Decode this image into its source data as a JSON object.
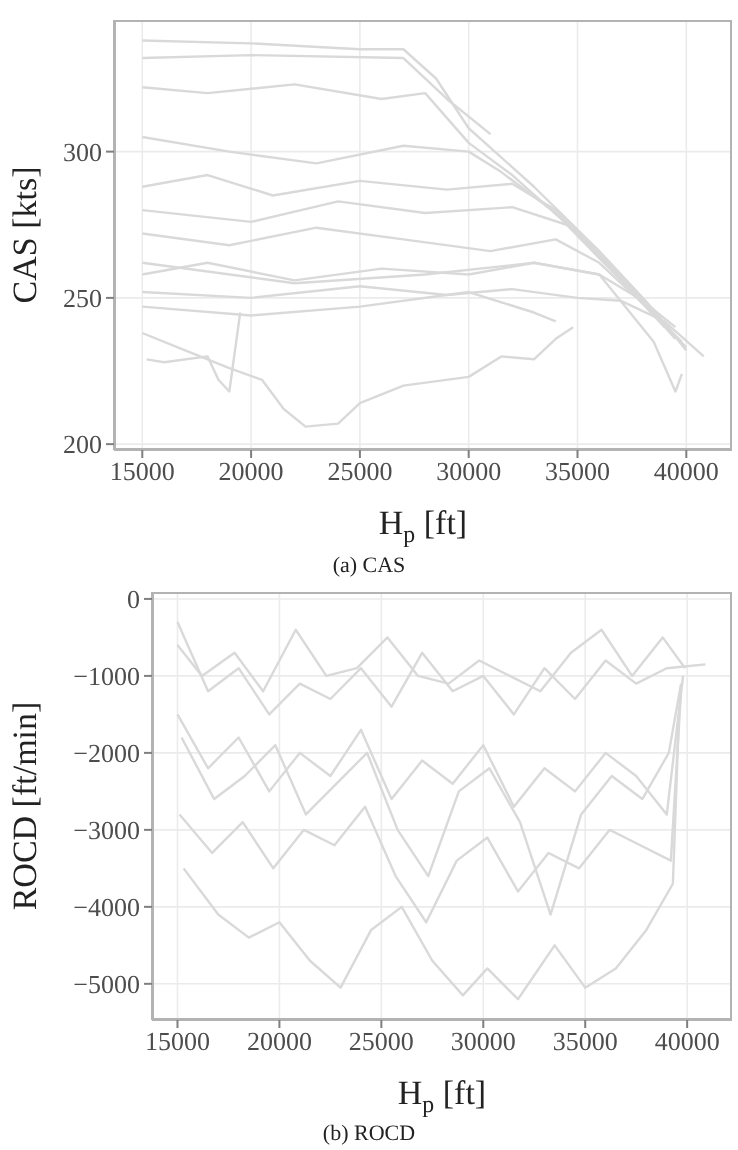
{
  "chart_data": [
    {
      "type": "line",
      "title": "(a) CAS",
      "xlabel": "H$_{p}$ [ft]",
      "ylabel": "CAS [kts]",
      "xlim": [
        13700,
        42100
      ],
      "ylim": [
        198,
        345
      ],
      "xticks": [
        15000,
        20000,
        25000,
        30000,
        35000,
        40000
      ],
      "yticks": [
        200,
        250,
        300
      ],
      "grid": true,
      "series": [
        {
          "color": "#d9d9d9",
          "x": [
            15000,
            20000,
            25000,
            27000,
            28500,
            30000,
            33000,
            36000,
            38000,
            39500
          ],
          "values": [
            338,
            337,
            335,
            335,
            325,
            308,
            288,
            266,
            250,
            237
          ]
        },
        {
          "color": "#d9d9d9",
          "x": [
            15000,
            18000,
            22000,
            26000,
            28000,
            30000,
            32000,
            35000,
            38000,
            40000
          ],
          "values": [
            322,
            320,
            323,
            318,
            320,
            303,
            292,
            272,
            249,
            233
          ]
        },
        {
          "color": "#d9d9d9",
          "x": [
            15000,
            19000,
            23000,
            27000,
            30000,
            31500,
            34000,
            37000,
            39500
          ],
          "values": [
            305,
            300,
            296,
            302,
            300,
            293,
            279,
            257,
            236
          ]
        },
        {
          "color": "#d9d9d9",
          "x": [
            15000,
            18000,
            21000,
            25000,
            29000,
            32000,
            34000,
            36000,
            38500,
            40000
          ],
          "values": [
            288,
            292,
            285,
            290,
            287,
            289,
            280,
            265,
            246,
            232
          ]
        },
        {
          "color": "#d9d9d9",
          "x": [
            15000,
            20000,
            24000,
            28000,
            32000,
            34500,
            37000,
            39000
          ],
          "values": [
            280,
            276,
            283,
            279,
            281,
            275,
            256,
            240
          ]
        },
        {
          "color": "#d9d9d9",
          "x": [
            15000,
            19000,
            23000,
            27000,
            31000,
            34000,
            36000,
            38000,
            39800
          ],
          "values": [
            272,
            268,
            274,
            270,
            266,
            270,
            262,
            248,
            235
          ]
        },
        {
          "color": "#d9d9d9",
          "x": [
            15000,
            18000,
            22000,
            26000,
            30000,
            33000,
            36000,
            38000,
            39500
          ],
          "values": [
            258,
            262,
            256,
            260,
            258,
            262,
            258,
            249,
            240
          ]
        },
        {
          "color": "#d9d9d9",
          "x": [
            15000,
            20000,
            25000,
            29000,
            32000,
            35000,
            37000,
            39000,
            40800
          ],
          "values": [
            252,
            250,
            254,
            251,
            253,
            250,
            249,
            242,
            230
          ]
        },
        {
          "color": "#d9d9d9",
          "x": [
            15000,
            20000,
            25000,
            30000,
            33000,
            34000
          ],
          "values": [
            247,
            244,
            247,
            252,
            245,
            242
          ]
        },
        {
          "color": "#d9d9d9",
          "x": [
            15000,
            17000,
            19000,
            20500,
            21500,
            22500,
            24000,
            25000,
            27000,
            30000,
            31500,
            33000,
            34000,
            34800
          ],
          "values": [
            238,
            232,
            226,
            222,
            212,
            206,
            207,
            214,
            220,
            223,
            230,
            229,
            236,
            240
          ]
        },
        {
          "color": "#d9d9d9",
          "x": [
            15200,
            16000,
            18000,
            18500,
            19000,
            19500
          ],
          "values": [
            229,
            228,
            230,
            222,
            218,
            245
          ]
        },
        {
          "color": "#d9d9d9",
          "x": [
            15000,
            20000,
            27000,
            29000,
            31000
          ],
          "values": [
            332,
            333,
            332,
            318,
            306
          ]
        },
        {
          "color": "#d9d9d9",
          "x": [
            15000,
            22000,
            28000,
            33000,
            36000,
            38500,
            39500,
            39800
          ],
          "values": [
            262,
            255,
            258,
            262,
            258,
            235,
            218,
            224
          ]
        }
      ]
    },
    {
      "type": "line",
      "title": "(b) ROCD",
      "xlabel": "H$_{p}$ [ft]",
      "ylabel": "ROCD [ft/min]",
      "xlim": [
        13750,
        42200
      ],
      "ylim": [
        -5470,
        90
      ],
      "xticks": [
        15000,
        20000,
        25000,
        30000,
        35000,
        40000
      ],
      "yticks": [
        0,
        -1000,
        -2000,
        -3000,
        -4000,
        -5000
      ],
      "grid": true,
      "series": [
        {
          "color": "#d9d9d9",
          "x": [
            15000,
            16500,
            18000,
            19500,
            21000,
            22500,
            24000,
            25500,
            27000,
            28500,
            30000,
            31500,
            33000,
            34500,
            36000,
            37500,
            39000,
            40900
          ],
          "values": [
            -300,
            -1200,
            -900,
            -1500,
            -1100,
            -1300,
            -900,
            -1400,
            -700,
            -1200,
            -1000,
            -1500,
            -900,
            -1300,
            -800,
            -1100,
            -900,
            -850
          ]
        },
        {
          "color": "#d9d9d9",
          "x": [
            15000,
            16500,
            18000,
            19500,
            21000,
            22500,
            24000,
            25500,
            27000,
            28500,
            30000,
            31500,
            33000,
            34500,
            36000,
            37500,
            39000,
            39800
          ],
          "values": [
            -1500,
            -2200,
            -1800,
            -2500,
            -2000,
            -2300,
            -1700,
            -2600,
            -2100,
            -2400,
            -1900,
            -2700,
            -2200,
            -2500,
            -2000,
            -2300,
            -2800,
            -1000
          ]
        },
        {
          "color": "#d9d9d9",
          "x": [
            15100,
            16700,
            18200,
            19700,
            21200,
            22700,
            24200,
            25700,
            27200,
            28700,
            30200,
            31700,
            33200,
            34700,
            36200,
            37700,
            39200,
            39700
          ],
          "values": [
            -2800,
            -3300,
            -2900,
            -3500,
            -3000,
            -3200,
            -2700,
            -3600,
            -4200,
            -3400,
            -3100,
            -3800,
            -3300,
            -3500,
            -3000,
            -3200,
            -3400,
            -1200
          ]
        },
        {
          "color": "#d9d9d9",
          "x": [
            15300,
            17000,
            18500,
            20000,
            21500,
            23000,
            24500,
            26000,
            27500,
            29000,
            30200,
            31700,
            33500,
            35000,
            36500,
            38000,
            39300,
            39600
          ],
          "values": [
            -3500,
            -4100,
            -4400,
            -4200,
            -4700,
            -5050,
            -4300,
            -4000,
            -4700,
            -5150,
            -4800,
            -5200,
            -4500,
            -5050,
            -4800,
            -4300,
            -3700,
            -1500
          ]
        },
        {
          "color": "#d9d9d9",
          "x": [
            15000,
            16200,
            17800,
            19200,
            20800,
            22300,
            23800,
            25300,
            26800,
            28300,
            29800,
            31300,
            32800,
            34300,
            35800,
            37300,
            38800,
            39900
          ],
          "values": [
            -600,
            -1000,
            -700,
            -1200,
            -400,
            -1000,
            -900,
            -500,
            -1000,
            -1100,
            -800,
            -1000,
            -1200,
            -700,
            -400,
            -1000,
            -500,
            -900
          ]
        },
        {
          "color": "#d9d9d9",
          "x": [
            15200,
            16800,
            18300,
            19800,
            21300,
            22800,
            24300,
            25800,
            27300,
            28800,
            30300,
            31800,
            33300,
            34800,
            36300,
            37800,
            39100,
            39700
          ],
          "values": [
            -1800,
            -2600,
            -2300,
            -1900,
            -2800,
            -2400,
            -2000,
            -3000,
            -3600,
            -2500,
            -2200,
            -2900,
            -4100,
            -2800,
            -2300,
            -2600,
            -2000,
            -1100
          ]
        }
      ]
    }
  ]
}
